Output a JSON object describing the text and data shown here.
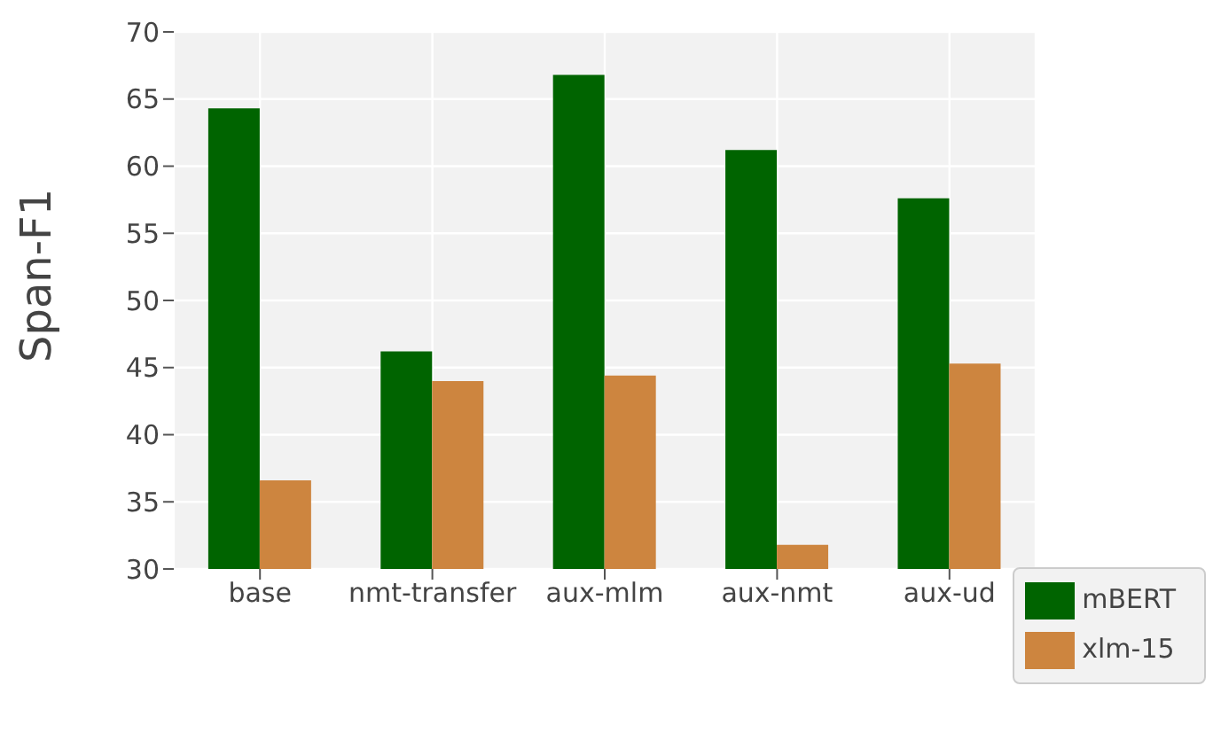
{
  "chart_data": {
    "type": "bar",
    "ylabel": "Span-F1",
    "categories": [
      "base",
      "nmt-transfer",
      "aux-mlm",
      "aux-nmt",
      "aux-ud"
    ],
    "series": [
      {
        "name": "mBERT",
        "color": "#006400",
        "values": [
          64.3,
          46.2,
          66.8,
          61.2,
          57.6
        ]
      },
      {
        "name": "xlm-15",
        "color": "#cd853f",
        "values": [
          36.6,
          44.0,
          44.4,
          31.8,
          45.3
        ]
      }
    ],
    "ylim": [
      30,
      70
    ],
    "yticks": [
      30,
      35,
      40,
      45,
      50,
      55,
      60,
      65,
      70
    ],
    "grid": true,
    "legend": "bottom right"
  }
}
